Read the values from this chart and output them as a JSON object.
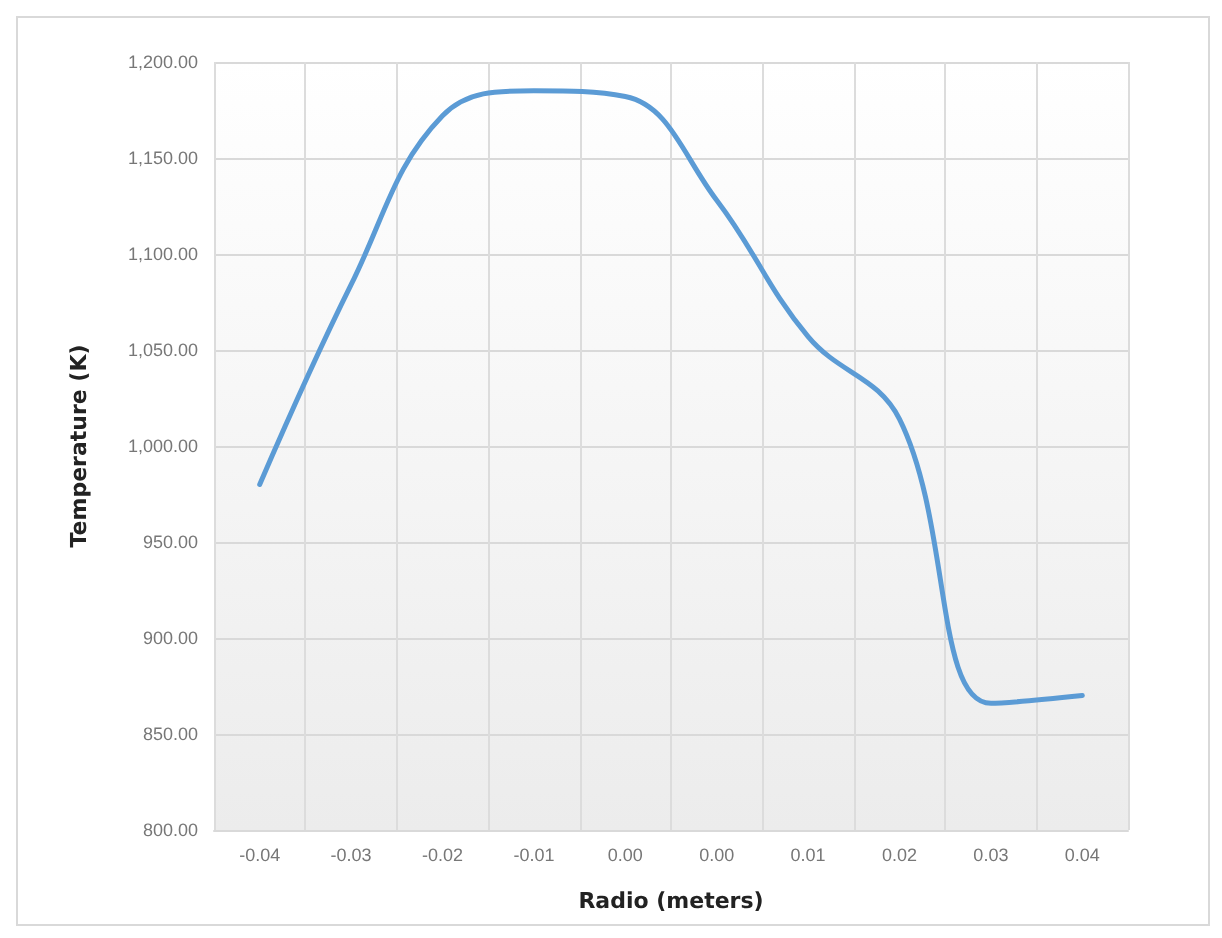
{
  "chart_data": {
    "type": "line",
    "xlabel": "Radio (meters)",
    "ylabel": "Temperature (K)",
    "categories": [
      "-0.04",
      "-0.03",
      "-0.02",
      "-0.01",
      "0.00",
      "0.00",
      "0.01",
      "0.02",
      "0.03",
      "0.04"
    ],
    "series": [
      {
        "color": "#5b9bd5",
        "values": [
          980,
          1084,
          1172,
          1185,
          1182,
          1128,
          1057,
          1014,
          866,
          870
        ]
      }
    ],
    "ylim": [
      800,
      1200
    ],
    "yticks": [
      {
        "value": 800,
        "label": "800.00"
      },
      {
        "value": 850,
        "label": "850.00"
      },
      {
        "value": 900,
        "label": "900.00"
      },
      {
        "value": 950,
        "label": "950.00"
      },
      {
        "value": 1000,
        "label": "1,000.00"
      },
      {
        "value": 1050,
        "label": "1,050.00"
      },
      {
        "value": 1100,
        "label": "1,100.00"
      },
      {
        "value": 1150,
        "label": "1,150.00"
      },
      {
        "value": 1200,
        "label": "1,200.00"
      }
    ],
    "grid": true,
    "marker": "none",
    "line_style": "solid"
  }
}
